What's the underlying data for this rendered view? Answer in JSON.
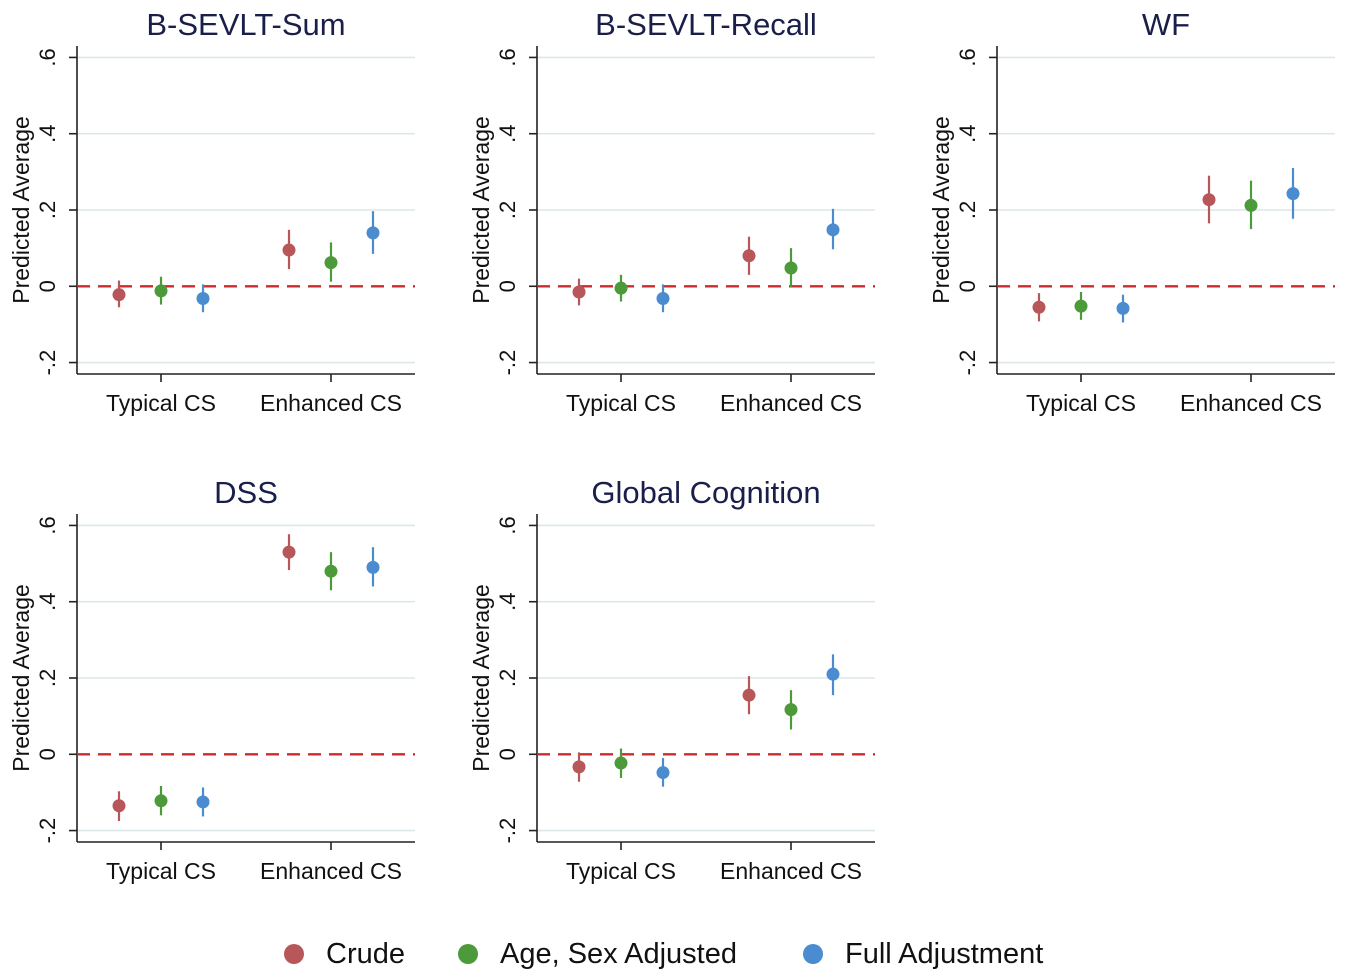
{
  "chart_data": [
    {
      "type": "scatter",
      "title": "B-SEVLT-Sum",
      "ylabel": "Predicted Average",
      "categories": [
        "Typical CS",
        "Enhanced CS"
      ],
      "ylim": [
        -0.23,
        0.63
      ],
      "yticks": [
        -0.2,
        0,
        0.2,
        0.4,
        0.6
      ],
      "ytick_labels": [
        "-.2",
        "0",
        ".2",
        ".4",
        ".6"
      ],
      "reference_line": 0,
      "series": [
        {
          "name": "Crude",
          "estimates": [
            -0.022,
            0.095
          ],
          "lower": [
            -0.055,
            0.045
          ],
          "upper": [
            0.015,
            0.148
          ]
        },
        {
          "name": "Age, Sex Adjusted",
          "estimates": [
            -0.012,
            0.062
          ],
          "lower": [
            -0.048,
            0.012
          ],
          "upper": [
            0.025,
            0.115
          ]
        },
        {
          "name": "Full Adjustment",
          "estimates": [
            -0.032,
            0.14
          ],
          "lower": [
            -0.068,
            0.085
          ],
          "upper": [
            0.005,
            0.197
          ]
        }
      ]
    },
    {
      "type": "scatter",
      "title": "B-SEVLT-Recall",
      "ylabel": "Predicted Average",
      "categories": [
        "Typical CS",
        "Enhanced CS"
      ],
      "ylim": [
        -0.23,
        0.63
      ],
      "yticks": [
        -0.2,
        0,
        0.2,
        0.4,
        0.6
      ],
      "ytick_labels": [
        "-.2",
        "0",
        ".2",
        ".4",
        ".6"
      ],
      "reference_line": 0,
      "series": [
        {
          "name": "Crude",
          "estimates": [
            -0.015,
            0.08
          ],
          "lower": [
            -0.05,
            0.03
          ],
          "upper": [
            0.02,
            0.13
          ]
        },
        {
          "name": "Age, Sex Adjusted",
          "estimates": [
            -0.005,
            0.048
          ],
          "lower": [
            -0.04,
            -0.002
          ],
          "upper": [
            0.03,
            0.1
          ]
        },
        {
          "name": "Full Adjustment",
          "estimates": [
            -0.032,
            0.148
          ],
          "lower": [
            -0.068,
            0.097
          ],
          "upper": [
            0.005,
            0.203
          ]
        }
      ]
    },
    {
      "type": "scatter",
      "title": "WF",
      "ylabel": "Predicted Average",
      "categories": [
        "Typical CS",
        "Enhanced CS"
      ],
      "ylim": [
        -0.23,
        0.63
      ],
      "yticks": [
        -0.2,
        0,
        0.2,
        0.4,
        0.6
      ],
      "ytick_labels": [
        "-.2",
        "0",
        ".2",
        ".4",
        ".6"
      ],
      "reference_line": 0,
      "series": [
        {
          "name": "Crude",
          "estimates": [
            -0.055,
            0.227
          ],
          "lower": [
            -0.092,
            0.165
          ],
          "upper": [
            -0.018,
            0.29
          ]
        },
        {
          "name": "Age, Sex Adjusted",
          "estimates": [
            -0.052,
            0.212
          ],
          "lower": [
            -0.088,
            0.15
          ],
          "upper": [
            -0.015,
            0.277
          ]
        },
        {
          "name": "Full Adjustment",
          "estimates": [
            -0.058,
            0.243
          ],
          "lower": [
            -0.095,
            0.177
          ],
          "upper": [
            -0.022,
            0.31
          ]
        }
      ]
    },
    {
      "type": "scatter",
      "title": "DSS",
      "ylabel": "Predicted Average",
      "categories": [
        "Typical CS",
        "Enhanced CS"
      ],
      "ylim": [
        -0.23,
        0.63
      ],
      "yticks": [
        -0.2,
        0,
        0.2,
        0.4,
        0.6
      ],
      "ytick_labels": [
        "-.2",
        "0",
        ".2",
        ".4",
        ".6"
      ],
      "reference_line": 0,
      "series": [
        {
          "name": "Crude",
          "estimates": [
            -0.135,
            0.53
          ],
          "lower": [
            -0.175,
            0.483
          ],
          "upper": [
            -0.097,
            0.577
          ]
        },
        {
          "name": "Age, Sex Adjusted",
          "estimates": [
            -0.122,
            0.48
          ],
          "lower": [
            -0.16,
            0.43
          ],
          "upper": [
            -0.083,
            0.53
          ]
        },
        {
          "name": "Full Adjustment",
          "estimates": [
            -0.125,
            0.49
          ],
          "lower": [
            -0.163,
            0.44
          ],
          "upper": [
            -0.087,
            0.543
          ]
        }
      ]
    },
    {
      "type": "scatter",
      "title": "Global Cognition",
      "ylabel": "Predicted Average",
      "categories": [
        "Typical CS",
        "Enhanced CS"
      ],
      "ylim": [
        -0.23,
        0.63
      ],
      "yticks": [
        -0.2,
        0,
        0.2,
        0.4,
        0.6
      ],
      "ytick_labels": [
        "-.2",
        "0",
        ".2",
        ".4",
        ".6"
      ],
      "reference_line": 0,
      "series": [
        {
          "name": "Crude",
          "estimates": [
            -0.033,
            0.155
          ],
          "lower": [
            -0.072,
            0.105
          ],
          "upper": [
            0.005,
            0.205
          ]
        },
        {
          "name": "Age, Sex Adjusted",
          "estimates": [
            -0.023,
            0.117
          ],
          "lower": [
            -0.062,
            0.065
          ],
          "upper": [
            0.015,
            0.168
          ]
        },
        {
          "name": "Full Adjustment",
          "estimates": [
            -0.048,
            0.21
          ],
          "lower": [
            -0.085,
            0.155
          ],
          "upper": [
            -0.01,
            0.262
          ]
        }
      ]
    }
  ],
  "legend": {
    "placement": "bottom",
    "items": [
      {
        "label": "Crude",
        "color": "#b8575a"
      },
      {
        "label": "Age, Sex Adjusted",
        "color": "#4c9a3a"
      },
      {
        "label": "Full Adjustment",
        "color": "#4b8bd0"
      }
    ]
  },
  "colors": {
    "crude": "#b8575a",
    "age_sex_adjusted": "#4c9a3a",
    "full_adjustment": "#4b8bd0",
    "reference_line": "#cc2b2b",
    "grid": "#dde7e9",
    "title": "#1a1f4a"
  }
}
